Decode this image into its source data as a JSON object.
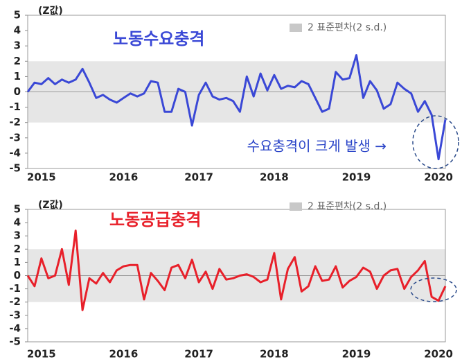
{
  "chart_data": [
    {
      "type": "line",
      "title": "노동수요충격",
      "y_label": "(Z값)",
      "legend_label": "2 표준편차(2 s.d.)",
      "annotation": "수요충격이 크게 발생 →",
      "band": [
        -2,
        2
      ],
      "band_color": "#e6e6e6",
      "color": "#3a48d6",
      "categories": [
        null,
        null,
        "2015",
        null,
        null,
        null,
        null,
        null,
        null,
        null,
        null,
        null,
        null,
        null,
        "2016",
        null,
        null,
        null,
        null,
        null,
        null,
        null,
        null,
        null,
        null,
        "2017",
        null,
        null,
        null,
        null,
        null,
        null,
        null,
        null,
        null,
        null,
        "2018",
        null,
        null,
        null,
        null,
        null,
        null,
        null,
        null,
        null,
        null,
        null,
        "2019",
        null,
        null,
        null,
        null,
        null,
        null,
        null,
        null,
        null,
        null,
        null,
        "2020",
        null
      ],
      "values": [
        0,
        0.6,
        0.5,
        0.9,
        0.5,
        0.8,
        0.6,
        0.8,
        1.5,
        0.6,
        -0.4,
        -0.2,
        -0.5,
        -0.7,
        -0.4,
        -0.1,
        -0.3,
        -0.1,
        0.7,
        0.6,
        -1.3,
        -1.3,
        0.2,
        0,
        -2.2,
        -0.2,
        0.6,
        -0.3,
        -0.5,
        -0.4,
        -0.6,
        -1.3,
        1.0,
        -0.3,
        1.2,
        0.1,
        1.1,
        0.2,
        0.4,
        0.3,
        0.7,
        0.5,
        -0.4,
        -1.3,
        -1.1,
        1.3,
        0.8,
        0.9,
        2.4,
        -0.4,
        0.7,
        0.1,
        -1.1,
        -0.8,
        0.6,
        0.2,
        -0.1,
        -1.3,
        -0.6,
        -1.5,
        -4.4,
        -1.8
      ],
      "ylim": [
        -5,
        5
      ],
      "yticks": [
        -5,
        -4,
        -3,
        -2,
        -1,
        0,
        1,
        2,
        3,
        4,
        5
      ]
    },
    {
      "type": "line",
      "title": "노동공급충격",
      "y_label": "(Z값)",
      "legend_label": "2 표준편차(2 s.d.)",
      "band": [
        -2,
        2
      ],
      "band_color": "#e6e6e6",
      "color": "#e8202a",
      "categories": [
        null,
        null,
        "2015",
        null,
        null,
        null,
        null,
        null,
        null,
        null,
        null,
        null,
        null,
        null,
        "2016",
        null,
        null,
        null,
        null,
        null,
        null,
        null,
        null,
        null,
        null,
        "2017",
        null,
        null,
        null,
        null,
        null,
        null,
        null,
        null,
        null,
        null,
        "2018",
        null,
        null,
        null,
        null,
        null,
        null,
        null,
        null,
        null,
        null,
        null,
        "2019",
        null,
        null,
        null,
        null,
        null,
        null,
        null,
        null,
        null,
        null,
        null,
        "2020",
        null
      ],
      "values": [
        0,
        -0.8,
        1.3,
        -0.2,
        0,
        2.0,
        -0.7,
        3.4,
        -2.6,
        -0.2,
        -0.6,
        0.2,
        -0.5,
        0.4,
        0.7,
        0.8,
        0.8,
        -1.8,
        0.2,
        -0.4,
        -1.1,
        0.6,
        0.8,
        -0.2,
        1.2,
        -0.5,
        0.3,
        -1.0,
        0.5,
        -0.3,
        -0.2,
        0,
        0.1,
        -0.1,
        -0.5,
        -0.3,
        1.7,
        -1.8,
        0.5,
        1.4,
        -1.2,
        -0.8,
        0.7,
        -0.4,
        -0.3,
        0.7,
        -0.9,
        -0.4,
        -0.1,
        0.6,
        0.3,
        -1.0,
        0,
        0.4,
        0.5,
        -1.0,
        -0.1,
        0.4,
        1.1,
        -1.6,
        -1.9,
        -0.8
      ],
      "ylim": [
        -5,
        5
      ],
      "yticks": [
        -5,
        -4,
        -3,
        -2,
        -1,
        0,
        1,
        2,
        3,
        4,
        5
      ]
    }
  ]
}
